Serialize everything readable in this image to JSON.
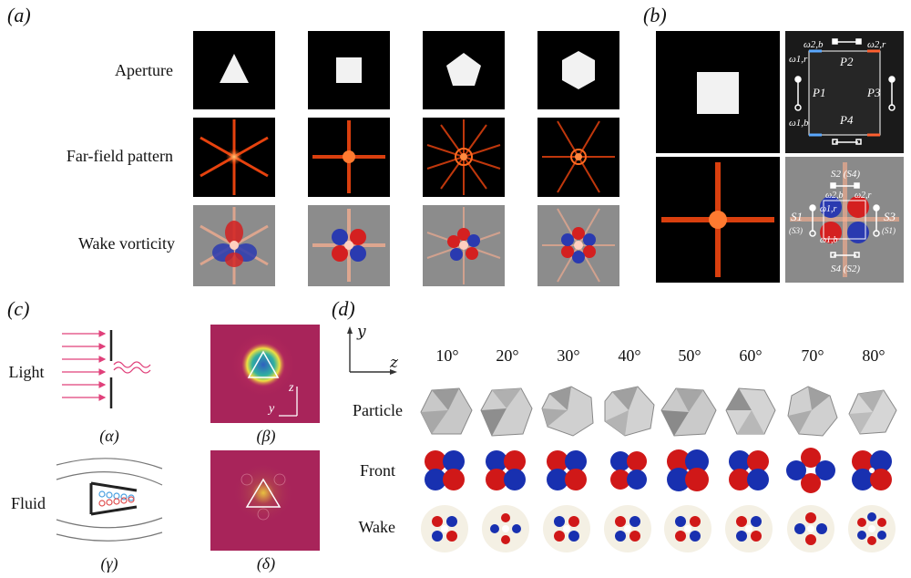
{
  "panel_a": {
    "label": "(a)",
    "rows": [
      "Aperture",
      "Far-field pattern",
      "Wake vorticity"
    ]
  },
  "panel_b": {
    "label": "(b)",
    "annotations_top": [
      "ω2,b",
      "ω2,r",
      "ω1,r",
      "P2",
      "P1",
      "P3",
      "ω1,b",
      "P4"
    ],
    "annotations_bottom": [
      "S2 (S4)",
      "ω2,b",
      "ω2,r",
      "ω1,r",
      "S1",
      "(S3)",
      "ω1,b",
      "S3",
      "(S1)",
      "S4 (S2)"
    ]
  },
  "panel_c": {
    "label": "(c)",
    "row_light": "Light",
    "row_fluid": "Fluid",
    "sub_alpha": "(α)",
    "sub_beta": "(β)",
    "sub_gamma": "(γ)",
    "sub_delta": "(δ)",
    "axis_z": "z",
    "axis_y": "y"
  },
  "panel_d": {
    "label": "(d)",
    "axis_y": "y",
    "axis_z": "z",
    "angles": [
      "10°",
      "20°",
      "30°",
      "40°",
      "50°",
      "60°",
      "70°",
      "80°"
    ],
    "rows": [
      "Particle",
      "Front",
      "Wake"
    ]
  }
}
